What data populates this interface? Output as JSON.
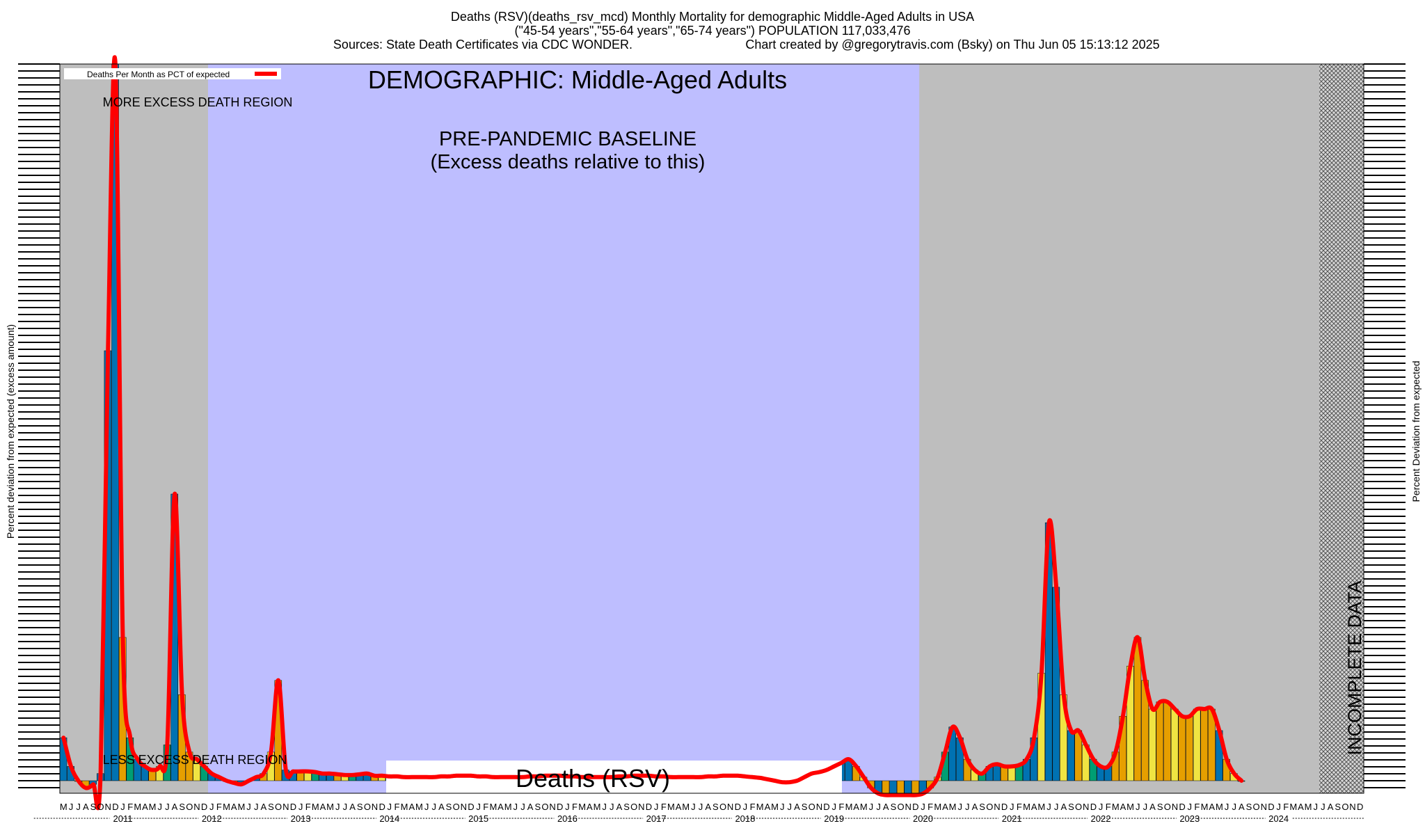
{
  "header": {
    "line1": "Deaths (RSV)(deaths_rsv_mcd) Monthly Mortality for demographic Middle-Aged Adults in USA",
    "line2": "(\"45-54 years\",\"55-64 years\",\"65-74 years\") POPULATION 117,033,476",
    "line3_left": "Sources: State Death Certificates via CDC WONDER.",
    "line3_right": "Chart created by @gregorytravis.com (Bsky) on Thu Jun 05 15:13:12 2025"
  },
  "chart_data": {
    "type": "bar",
    "title": "DEMOGRAPHIC: Middle-Aged Adults",
    "subtitle": "Deaths (RSV)",
    "ylabel_left": "Percent deviation from expected (excess amount)",
    "ylabel_right": "Percent Deviation from expected",
    "legend": {
      "label": "Deaths Per Month as PCT of expected",
      "placement": "top-left",
      "color": "#ff0000"
    },
    "annotations": {
      "baseline_line1": "PRE-PANDEMIC BASELINE",
      "baseline_line2": "(Excess deaths relative to this)",
      "more_excess": "MORE EXCESS DEATH REGION",
      "less_excess": "LESS EXCESS DEATH REGION",
      "incomplete": "INCOMPLETE DATA"
    },
    "colors": {
      "background_gray": "#bebebe",
      "baseline_blue": "#bebeff",
      "line_red": "#ff0000",
      "bar_blue": "#0072b2",
      "bar_orange": "#e69f00",
      "bar_yellow": "#f0e442",
      "bar_green": "#009e73"
    },
    "month_letters": [
      "J",
      "F",
      "M",
      "A",
      "M",
      "J",
      "J",
      "A",
      "S",
      "O",
      "N",
      "D"
    ],
    "years": [
      "2011",
      "2012",
      "2013",
      "2014",
      "2015",
      "2016",
      "2017",
      "2018",
      "2019",
      "2020",
      "2021",
      "2022",
      "2023",
      "2024"
    ],
    "start": "2010-05",
    "end": "2024-12",
    "baseline_period": [
      "2012-01",
      "2019-12"
    ],
    "incomplete_period": [
      "2024-07",
      "2024-12"
    ],
    "values": [
      6,
      2,
      0,
      -1,
      -0.5,
      1,
      60,
      100,
      20,
      6,
      3,
      2,
      1.5,
      2,
      5,
      40,
      12,
      4,
      3,
      2,
      1,
      0.5,
      0,
      -0.3,
      -0.5,
      0,
      0.5,
      1,
      4,
      14,
      1.5,
      1.3,
      1.3,
      1.3,
      1.2,
      1,
      1,
      0.9,
      0.8,
      0.8,
      0.9,
      1,
      0.7,
      0.7,
      0.6,
      0.6,
      0.5,
      0.5,
      0.5,
      0.5,
      0.5,
      0.6,
      0.6,
      0.7,
      0.7,
      0.7,
      0.6,
      0.6,
      0.5,
      0.5,
      0.5,
      0.5,
      0.5,
      0.6,
      0.6,
      0.7,
      0.7,
      0.7,
      0.6,
      0.6,
      0.5,
      0.5,
      0.5,
      0.5,
      0.5,
      0.6,
      0.6,
      0.7,
      0.7,
      0.7,
      0.6,
      0.6,
      0.5,
      0.5,
      0.5,
      0.5,
      0.5,
      0.6,
      0.6,
      0.7,
      0.7,
      0.7,
      0.6,
      0.5,
      0.4,
      0.2,
      0,
      -0.2,
      -0.2,
      0,
      0.5,
      1,
      1.2,
      1.5,
      2,
      2.5,
      3,
      2,
      0.5,
      -1,
      -1.8,
      -2,
      -2,
      -2,
      -2,
      -2,
      -1.8,
      -1,
      0.5,
      4,
      7.5,
      6,
      3,
      1.5,
      1,
      2,
      2.3,
      2,
      2,
      2.2,
      3,
      6,
      15,
      36,
      27,
      12,
      7,
      7,
      5,
      3,
      2,
      2,
      4,
      9,
      16,
      20,
      14,
      10,
      11,
      11,
      10,
      9,
      9,
      10,
      10,
      10,
      7,
      3,
      1,
      0
    ]
  }
}
